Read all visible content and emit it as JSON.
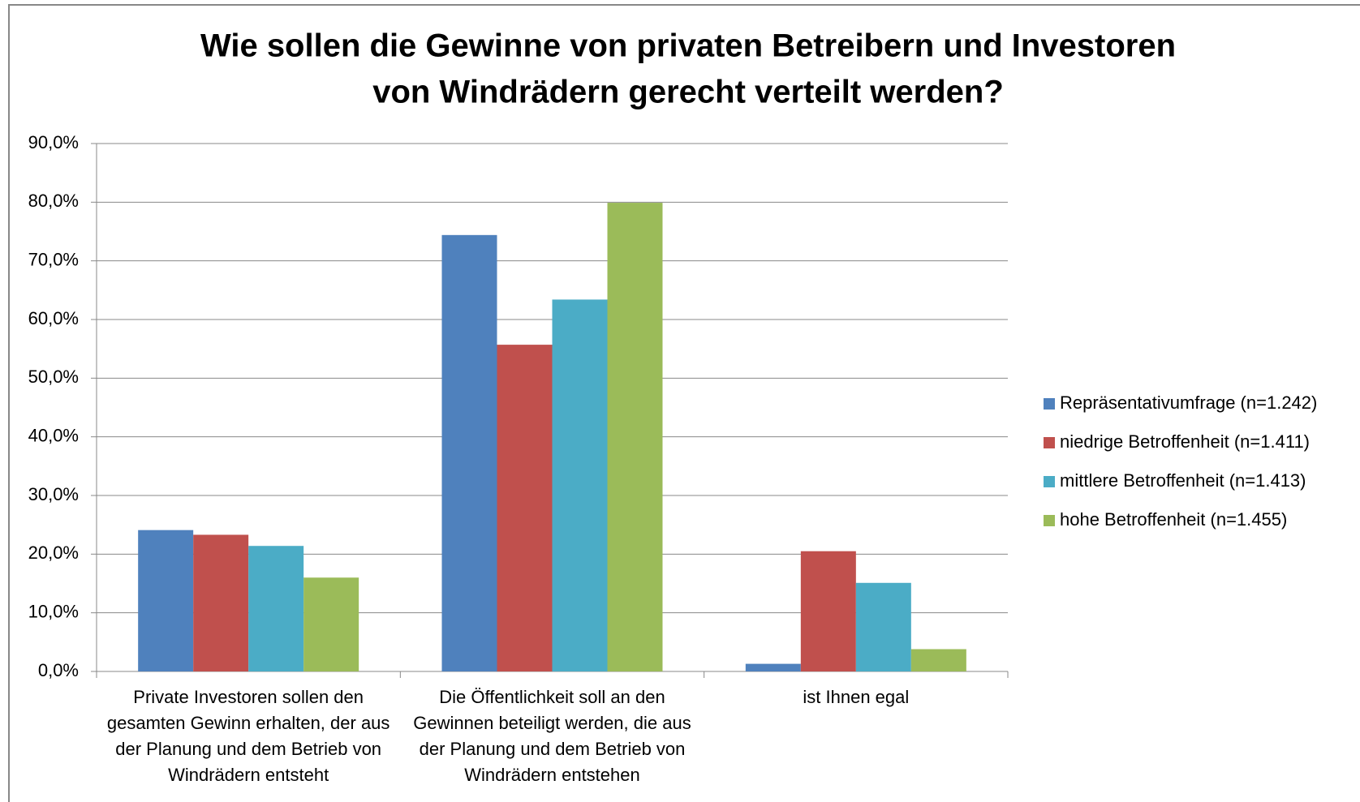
{
  "chart_data": {
    "type": "bar",
    "title": [
      "Wie sollen die Gewinne von privaten Betreibern und Investoren",
      "von Windrädern gerecht verteilt werden?"
    ],
    "categories": [
      "Private Investoren sollen den gesamten Gewinn erhalten, der aus der Planung und dem Betrieb von Windrädern entsteht",
      "Die Öffentlichkeit soll an den Gewinnen beteiligt werden, die aus der Planung und dem Betrieb von Windrädern entstehen",
      "ist Ihnen egal"
    ],
    "series": [
      {
        "name": "Repräsentativumfrage (n=1.242)",
        "color": "#4f81bd",
        "values": [
          24.1,
          74.4,
          1.3
        ]
      },
      {
        "name": "niedrige Betroffenheit (n=1.411)",
        "color": "#c0504d",
        "values": [
          23.3,
          55.7,
          20.5
        ]
      },
      {
        "name": "mittlere Betroffenheit (n=1.413)",
        "color": "#4bacc6",
        "values": [
          21.4,
          63.4,
          15.1
        ]
      },
      {
        "name": "hohe Betroffenheit (n=1.455)",
        "color": "#9bbb59",
        "values": [
          16.0,
          79.9,
          3.8
        ]
      }
    ],
    "ylim": [
      0,
      90
    ],
    "yticks": [
      {
        "value": 0,
        "label": "0,0%"
      },
      {
        "value": 10,
        "label": "10,0%"
      },
      {
        "value": 20,
        "label": "20,0%"
      },
      {
        "value": 30,
        "label": "30,0%"
      },
      {
        "value": 40,
        "label": "40,0%"
      },
      {
        "value": 50,
        "label": "50,0%"
      },
      {
        "value": 60,
        "label": "60,0%"
      },
      {
        "value": 70,
        "label": "70,0%"
      },
      {
        "value": 80,
        "label": "80,0%"
      },
      {
        "value": 90,
        "label": "90,0%"
      }
    ],
    "grid": true,
    "legend": "right"
  }
}
